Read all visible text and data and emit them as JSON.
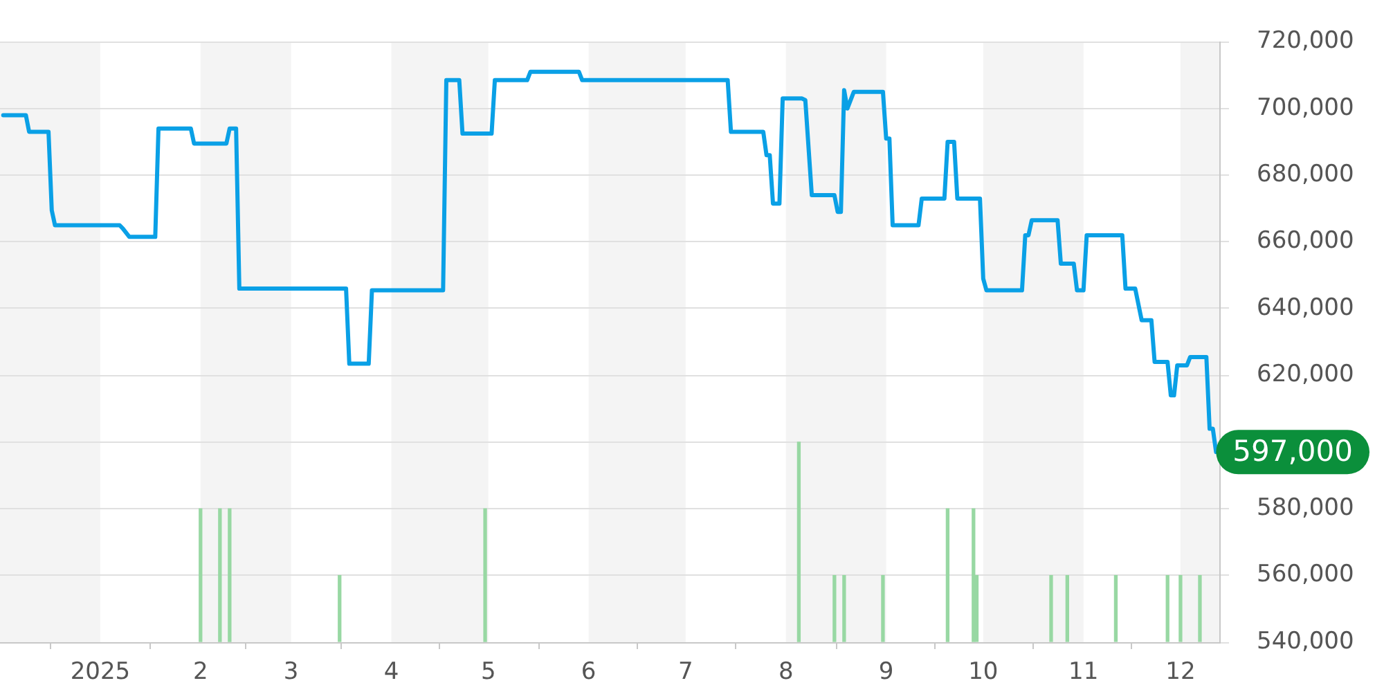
{
  "chart_data": {
    "type": "line",
    "xlim": [
      "2024-12-01",
      "2025-12-13"
    ],
    "xticks": [
      {
        "value": "2025-01-01",
        "label": "2025"
      },
      {
        "value": "2025-02-01",
        "label": "2"
      },
      {
        "value": "2025-03-01",
        "label": "3"
      },
      {
        "value": "2025-04-01",
        "label": "4"
      },
      {
        "value": "2025-05-01",
        "label": "5"
      },
      {
        "value": "2025-06-01",
        "label": "6"
      },
      {
        "value": "2025-07-01",
        "label": "7"
      },
      {
        "value": "2025-08-01",
        "label": "8"
      },
      {
        "value": "2025-09-01",
        "label": "9"
      },
      {
        "value": "2025-10-01",
        "label": "10"
      },
      {
        "value": "2025-11-01",
        "label": "11"
      },
      {
        "value": "2025-12-01",
        "label": "12"
      }
    ],
    "ylim": [
      540000,
      720000
    ],
    "yticks": [
      {
        "value": 540000,
        "label": "540,000"
      },
      {
        "value": 560000,
        "label": "560,000"
      },
      {
        "value": 580000,
        "label": "580,000"
      },
      {
        "value": 600000,
        "label": null
      },
      {
        "value": 620000,
        "label": "620,000"
      },
      {
        "value": 640000,
        "label": "640,000"
      },
      {
        "value": 660000,
        "label": "660,000"
      },
      {
        "value": 680000,
        "label": "680,000"
      },
      {
        "value": 700000,
        "label": "700,000"
      },
      {
        "value": 720000,
        "label": "720,000"
      }
    ],
    "grid": "y",
    "legend": false,
    "marker": "none",
    "line_style": "solid",
    "bands": [
      {
        "axis": "x",
        "from": "2024-12-01",
        "to": "2025-01-01",
        "color": "#f4f4f4"
      },
      {
        "axis": "x",
        "from": "2025-02-01",
        "to": "2025-03-01",
        "color": "#f4f4f4"
      },
      {
        "axis": "x",
        "from": "2025-04-01",
        "to": "2025-05-01",
        "color": "#f4f4f4"
      },
      {
        "axis": "x",
        "from": "2025-06-01",
        "to": "2025-07-01",
        "color": "#f4f4f4"
      },
      {
        "axis": "x",
        "from": "2025-08-01",
        "to": "2025-09-01",
        "color": "#f4f4f4"
      },
      {
        "axis": "x",
        "from": "2025-10-01",
        "to": "2025-11-01",
        "color": "#f4f4f4"
      },
      {
        "axis": "x",
        "from": "2025-12-01",
        "to": "2025-12-13",
        "color": "#f4f4f4"
      }
    ],
    "annotations": [
      {
        "text": "597,000",
        "x": "2025-12-12",
        "y": 597000
      }
    ],
    "series": [
      {
        "color": "#0aa0e6",
        "x": [
          "2024-12-02",
          "2024-12-09",
          "2024-12-10",
          "2024-12-16",
          "2024-12-17",
          "2024-12-18",
          "2025-01-07",
          "2025-01-08",
          "2025-01-10",
          "2025-01-18",
          "2025-01-19",
          "2025-01-29",
          "2025-01-30",
          "2025-02-09",
          "2025-02-10",
          "2025-02-12",
          "2025-02-13",
          "2025-03-18",
          "2025-03-19",
          "2025-03-25",
          "2025-03-26",
          "2025-04-17",
          "2025-04-18",
          "2025-04-22",
          "2025-04-23",
          "2025-05-02",
          "2025-05-03",
          "2025-05-13",
          "2025-05-14",
          "2025-05-29",
          "2025-05-30",
          "2025-07-14",
          "2025-07-15",
          "2025-07-25",
          "2025-07-26",
          "2025-07-27",
          "2025-07-28",
          "2025-07-30",
          "2025-07-31",
          "2025-08-06",
          "2025-08-07",
          "2025-08-09",
          "2025-08-16",
          "2025-08-17",
          "2025-08-18",
          "2025-08-19",
          "2025-08-20",
          "2025-08-22",
          "2025-08-31",
          "2025-09-01",
          "2025-09-02",
          "2025-09-03",
          "2025-09-11",
          "2025-09-12",
          "2025-09-19",
          "2025-09-20",
          "2025-09-22",
          "2025-09-23",
          "2025-09-30",
          "2025-10-01",
          "2025-10-02",
          "2025-10-13",
          "2025-10-14",
          "2025-10-15",
          "2025-10-16",
          "2025-10-24",
          "2025-10-25",
          "2025-10-29",
          "2025-10-30",
          "2025-11-01",
          "2025-11-02",
          "2025-11-13",
          "2025-11-14",
          "2025-11-17",
          "2025-11-19",
          "2025-11-22",
          "2025-11-23",
          "2025-11-27",
          "2025-11-28",
          "2025-11-29",
          "2025-11-30",
          "2025-12-03",
          "2025-12-04",
          "2025-12-09",
          "2025-12-10",
          "2025-12-11",
          "2025-12-12"
        ],
        "values": [
          698000,
          698000,
          693000,
          693000,
          669500,
          665000,
          665000,
          664000,
          661500,
          661500,
          694000,
          694000,
          689500,
          689500,
          694000,
          694000,
          646000,
          646000,
          623500,
          623500,
          645500,
          645500,
          708500,
          708500,
          692500,
          692500,
          708500,
          708500,
          711000,
          711000,
          708500,
          708500,
          693000,
          693000,
          686000,
          686000,
          671500,
          671500,
          703000,
          703000,
          702500,
          674000,
          674000,
          669000,
          669000,
          705500,
          700000,
          705000,
          705000,
          691000,
          691000,
          665000,
          665000,
          673000,
          673000,
          690000,
          690000,
          673000,
          673000,
          649000,
          645500,
          645500,
          662000,
          662000,
          666500,
          666500,
          653500,
          653500,
          645500,
          645500,
          662000,
          662000,
          646000,
          646000,
          636500,
          636500,
          624000,
          624000,
          614000,
          614000,
          623000,
          623000,
          625500,
          625500,
          604000,
          604000,
          597000
        ]
      },
      {
        "type": "bar",
        "color": "#98d8a3",
        "x": [
          "2025-02-01",
          "2025-02-07",
          "2025-02-10",
          "2025-03-16",
          "2025-04-30",
          "2025-08-05",
          "2025-08-16",
          "2025-08-19",
          "2025-08-31",
          "2025-09-20",
          "2025-09-28",
          "2025-09-29",
          "2025-10-22",
          "2025-10-27",
          "2025-11-11",
          "2025-11-27",
          "2025-12-01",
          "2025-12-07"
        ],
        "values": [
          580000,
          580000,
          580000,
          560000,
          580000,
          600000,
          560000,
          560000,
          560000,
          580000,
          580000,
          560000,
          560000,
          560000,
          560000,
          560000,
          560000,
          560000
        ]
      }
    ]
  }
}
